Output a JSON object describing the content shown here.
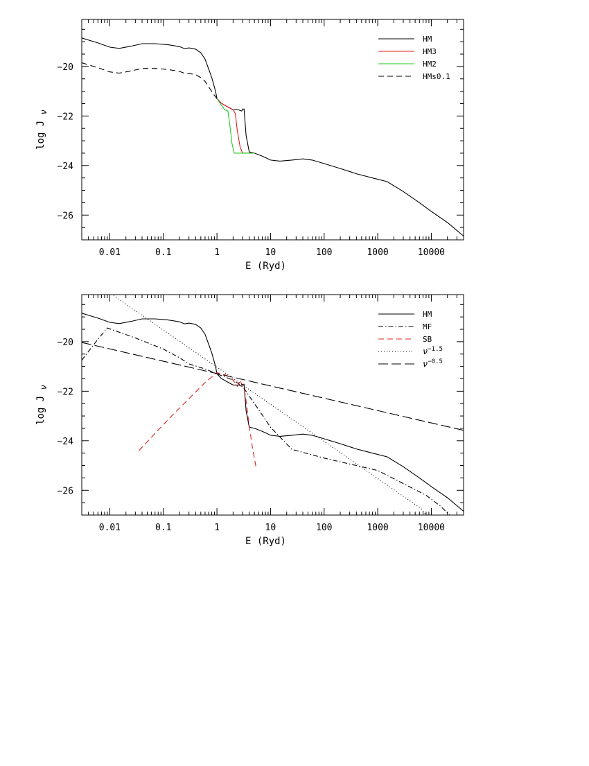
{
  "chart_data": [
    {
      "type": "line",
      "xscale": "log",
      "xlim": [
        0.003,
        40000
      ],
      "ylim": [
        -27,
        -18.1
      ],
      "xlabel": "E (Ryd)",
      "ylabel_main": "log J",
      "ylabel_sub": "ν",
      "xticks": [
        {
          "value": 0.01,
          "label": "0.01"
        },
        {
          "value": 0.1,
          "label": "0.1"
        },
        {
          "value": 1,
          "label": "1"
        },
        {
          "value": 10,
          "label": "10"
        },
        {
          "value": 100,
          "label": "100"
        },
        {
          "value": 1000,
          "label": "1000"
        },
        {
          "value": 10000,
          "label": "10000"
        }
      ],
      "yticks": [
        {
          "value": -20,
          "label": "−20"
        },
        {
          "value": -22,
          "label": "−22"
        },
        {
          "value": -24,
          "label": "−24"
        },
        {
          "value": -26,
          "label": "−26"
        }
      ],
      "legend_position": "top-right",
      "series": [
        {
          "name": "HM",
          "color": "#000000",
          "dash": "solid",
          "points": [
            [
              0.003,
              -18.85
            ],
            [
              0.006,
              -19.05
            ],
            [
              0.01,
              -19.22
            ],
            [
              0.015,
              -19.27
            ],
            [
              0.025,
              -19.18
            ],
            [
              0.04,
              -19.08
            ],
            [
              0.07,
              -19.08
            ],
            [
              0.12,
              -19.12
            ],
            [
              0.2,
              -19.2
            ],
            [
              0.25,
              -19.28
            ],
            [
              0.3,
              -19.25
            ],
            [
              0.4,
              -19.3
            ],
            [
              0.5,
              -19.45
            ],
            [
              0.6,
              -19.7
            ],
            [
              0.7,
              -20.1
            ],
            [
              0.8,
              -20.45
            ],
            [
              0.9,
              -20.85
            ],
            [
              0.95,
              -21.05
            ],
            [
              1.0,
              -21.3
            ],
            [
              1.2,
              -21.48
            ],
            [
              1.5,
              -21.6
            ],
            [
              2.0,
              -21.75
            ],
            [
              2.5,
              -21.75
            ],
            [
              2.9,
              -21.8
            ],
            [
              3.0,
              -21.72
            ],
            [
              3.2,
              -21.72
            ],
            [
              3.5,
              -22.8
            ],
            [
              4.0,
              -23.45
            ],
            [
              5,
              -23.5
            ],
            [
              7,
              -23.62
            ],
            [
              10,
              -23.78
            ],
            [
              15,
              -23.82
            ],
            [
              25,
              -23.78
            ],
            [
              40,
              -23.73
            ],
            [
              60,
              -23.78
            ],
            [
              100,
              -23.92
            ],
            [
              200,
              -24.12
            ],
            [
              400,
              -24.33
            ],
            [
              800,
              -24.5
            ],
            [
              1500,
              -24.65
            ],
            [
              3000,
              -25.05
            ],
            [
              6000,
              -25.5
            ],
            [
              10000,
              -25.85
            ],
            [
              20000,
              -26.3
            ],
            [
              40000,
              -26.85
            ]
          ]
        },
        {
          "name": "HM3",
          "color": "#e02020",
          "dash": "solid",
          "points": [
            [
              1.0,
              -21.3
            ],
            [
              1.2,
              -21.48
            ],
            [
              1.5,
              -21.6
            ],
            [
              2.0,
              -21.75
            ],
            [
              2.2,
              -21.9
            ],
            [
              2.4,
              -22.6
            ],
            [
              2.7,
              -23.25
            ],
            [
              3.0,
              -23.5
            ],
            [
              4.0,
              -23.5
            ],
            [
              5,
              -23.5
            ]
          ]
        },
        {
          "name": "HM2",
          "color": "#20c820",
          "dash": "solid",
          "points": [
            [
              1.0,
              -21.3
            ],
            [
              1.2,
              -21.55
            ],
            [
              1.4,
              -21.75
            ],
            [
              1.6,
              -21.8
            ],
            [
              1.75,
              -22.4
            ],
            [
              1.9,
              -23.1
            ],
            [
              2.1,
              -23.5
            ],
            [
              3.0,
              -23.5
            ],
            [
              4.0,
              -23.5
            ],
            [
              5,
              -23.5
            ]
          ]
        },
        {
          "name": "HMs0.1",
          "color": "#000000",
          "dash": "8,5",
          "points": [
            [
              0.003,
              -19.85
            ],
            [
              0.006,
              -20.05
            ],
            [
              0.01,
              -20.22
            ],
            [
              0.015,
              -20.27
            ],
            [
              0.025,
              -20.18
            ],
            [
              0.04,
              -20.08
            ],
            [
              0.07,
              -20.08
            ],
            [
              0.12,
              -20.12
            ],
            [
              0.2,
              -20.2
            ],
            [
              0.25,
              -20.28
            ],
            [
              0.3,
              -20.28
            ],
            [
              0.4,
              -20.33
            ],
            [
              0.5,
              -20.45
            ],
            [
              0.6,
              -20.6
            ],
            [
              0.7,
              -20.82
            ],
            [
              0.85,
              -21.1
            ],
            [
              1.0,
              -21.3
            ]
          ]
        }
      ]
    },
    {
      "type": "line",
      "xscale": "log",
      "xlim": [
        0.003,
        40000
      ],
      "ylim": [
        -27,
        -18.1
      ],
      "xlabel": "E (Ryd)",
      "ylabel_main": "log J",
      "ylabel_sub": "ν",
      "xticks": [
        {
          "value": 0.01,
          "label": "0.01"
        },
        {
          "value": 0.1,
          "label": "0.1"
        },
        {
          "value": 1,
          "label": "1"
        },
        {
          "value": 10,
          "label": "10"
        },
        {
          "value": 100,
          "label": "100"
        },
        {
          "value": 1000,
          "label": "1000"
        },
        {
          "value": 10000,
          "label": "10000"
        }
      ],
      "yticks": [
        {
          "value": -20,
          "label": "−20"
        },
        {
          "value": -22,
          "label": "−22"
        },
        {
          "value": -24,
          "label": "−24"
        },
        {
          "value": -26,
          "label": "−26"
        }
      ],
      "legend_position": "top-right",
      "series": [
        {
          "name": "HM",
          "color": "#000000",
          "dash": "solid",
          "points": [
            [
              0.003,
              -18.85
            ],
            [
              0.006,
              -19.05
            ],
            [
              0.01,
              -19.22
            ],
            [
              0.015,
              -19.27
            ],
            [
              0.025,
              -19.18
            ],
            [
              0.04,
              -19.08
            ],
            [
              0.07,
              -19.08
            ],
            [
              0.12,
              -19.12
            ],
            [
              0.2,
              -19.2
            ],
            [
              0.25,
              -19.28
            ],
            [
              0.3,
              -19.25
            ],
            [
              0.4,
              -19.3
            ],
            [
              0.5,
              -19.45
            ],
            [
              0.6,
              -19.7
            ],
            [
              0.7,
              -20.1
            ],
            [
              0.8,
              -20.45
            ],
            [
              0.9,
              -20.85
            ],
            [
              0.95,
              -21.05
            ],
            [
              1.0,
              -21.3
            ],
            [
              1.2,
              -21.48
            ],
            [
              1.5,
              -21.6
            ],
            [
              2.0,
              -21.75
            ],
            [
              2.5,
              -21.75
            ],
            [
              2.9,
              -21.8
            ],
            [
              3.0,
              -21.72
            ],
            [
              3.2,
              -21.72
            ],
            [
              3.5,
              -22.8
            ],
            [
              4.0,
              -23.45
            ],
            [
              5,
              -23.5
            ],
            [
              7,
              -23.62
            ],
            [
              10,
              -23.78
            ],
            [
              15,
              -23.82
            ],
            [
              25,
              -23.78
            ],
            [
              40,
              -23.73
            ],
            [
              60,
              -23.78
            ],
            [
              100,
              -23.92
            ],
            [
              200,
              -24.12
            ],
            [
              400,
              -24.33
            ],
            [
              800,
              -24.5
            ],
            [
              1500,
              -24.65
            ],
            [
              3000,
              -25.05
            ],
            [
              6000,
              -25.5
            ],
            [
              10000,
              -25.85
            ],
            [
              20000,
              -26.3
            ],
            [
              40000,
              -26.85
            ]
          ]
        },
        {
          "name": "MF",
          "color": "#000000",
          "dash": "7,3,1.5,3",
          "points": [
            [
              0.003,
              -20.75
            ],
            [
              0.006,
              -19.9
            ],
            [
              0.009,
              -19.45
            ],
            [
              0.03,
              -19.85
            ],
            [
              0.1,
              -20.3
            ],
            [
              0.2,
              -20.65
            ],
            [
              0.3,
              -20.9
            ],
            [
              0.6,
              -21.1
            ],
            [
              1.0,
              -21.3
            ],
            [
              2.0,
              -21.55
            ],
            [
              3.0,
              -21.8
            ],
            [
              5,
              -22.5
            ],
            [
              10,
              -23.45
            ],
            [
              25,
              -24.35
            ],
            [
              100,
              -24.7
            ],
            [
              1000,
              -25.2
            ],
            [
              8000,
              -26.2
            ],
            [
              15000,
              -26.65
            ],
            [
              22000,
              -27
            ]
          ]
        },
        {
          "name": "SB",
          "color": "#e02020",
          "dash": "8,5",
          "points": [
            [
              0.035,
              -24.4
            ],
            [
              0.07,
              -23.7
            ],
            [
              0.15,
              -22.95
            ],
            [
              0.3,
              -22.3
            ],
            [
              0.6,
              -21.65
            ],
            [
              1.0,
              -21.25
            ],
            [
              1.5,
              -21.35
            ],
            [
              2.0,
              -21.55
            ],
            [
              2.4,
              -21.8
            ],
            [
              2.7,
              -21.55
            ],
            [
              3.0,
              -21.8
            ],
            [
              3.3,
              -22.0
            ],
            [
              3.6,
              -22.6
            ],
            [
              4.0,
              -23.4
            ],
            [
              4.6,
              -24.3
            ],
            [
              5.4,
              -25.1
            ]
          ]
        },
        {
          "name": "ν",
          "name_sup": "−1.5",
          "color": "#000000",
          "dash": "1,3",
          "points": [
            [
              0.003,
              -17.25
            ],
            [
              6555,
              -26.75
            ],
            [
              8000,
              -27
            ]
          ]
        },
        {
          "name": "ν",
          "name_sup": "−0.5",
          "color": "#000000",
          "dash": "14,5",
          "points": [
            [
              0.003,
              -20.03
            ],
            [
              40000,
              -23.58
            ]
          ]
        }
      ]
    }
  ]
}
